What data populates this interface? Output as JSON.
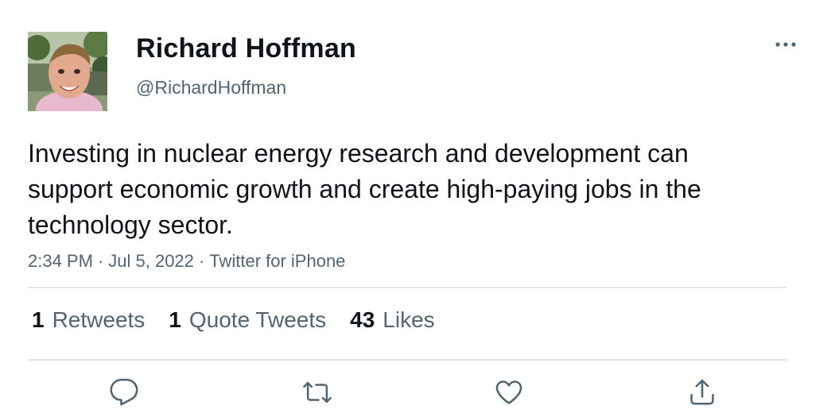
{
  "author": {
    "display_name": "Richard Hoffman",
    "handle": "@RichardHoffman",
    "avatar_icon": "profile-photo"
  },
  "tweet": {
    "text": "Investing in nuclear energy research and development can support economic growth and create high-paying jobs in the technology sector.",
    "time": "2:34 PM",
    "date": "Jul 5, 2022",
    "source": "Twitter for iPhone",
    "separator": "·"
  },
  "stats": {
    "retweets": {
      "count": "1",
      "label": "Retweets"
    },
    "quote_tweets": {
      "count": "1",
      "label": "Quote Tweets"
    },
    "likes": {
      "count": "43",
      "label": "Likes"
    }
  },
  "icons": {
    "more": "more-horizontal-icon",
    "reply": "reply-icon",
    "retweet": "retweet-icon",
    "like": "heart-icon",
    "share": "share-icon"
  },
  "colors": {
    "text_primary": "#0f1419",
    "text_secondary": "#536471",
    "divider": "#e1e5e9"
  }
}
